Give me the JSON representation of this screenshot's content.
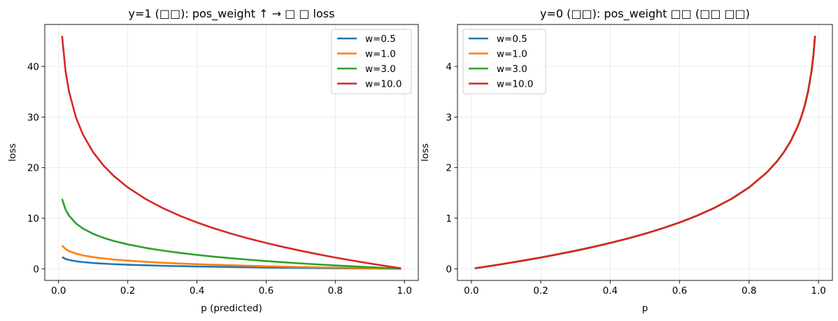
{
  "chart_data": [
    {
      "type": "line",
      "title": "y=1 (□□): pos_weight ↑ → □ □ loss",
      "xlabel": "p (predicted)",
      "ylabel": "loss",
      "xlim": [
        -0.04,
        1.04
      ],
      "ylim": [
        -2.3,
        48.3
      ],
      "xticks": [
        0.0,
        0.2,
        0.4,
        0.6,
        0.8,
        1.0
      ],
      "xtick_labels": [
        "0.0",
        "0.2",
        "0.4",
        "0.6",
        "0.8",
        "1.0"
      ],
      "yticks": [
        0,
        10,
        20,
        30,
        40
      ],
      "ytick_labels": [
        "0",
        "10",
        "20",
        "30",
        "40"
      ],
      "grid": true,
      "legend": "top-right",
      "series": [
        {
          "name": "w=0.5",
          "color": "#1f77b4",
          "x": [
            0.01,
            0.02,
            0.03,
            0.05,
            0.07,
            0.1,
            0.13,
            0.16,
            0.2,
            0.25,
            0.3,
            0.35,
            0.4,
            0.45,
            0.5,
            0.55,
            0.6,
            0.65,
            0.7,
            0.75,
            0.8,
            0.85,
            0.9,
            0.95,
            0.99
          ],
          "y": [
            2.303,
            1.956,
            1.753,
            1.498,
            1.33,
            1.151,
            1.02,
            0.916,
            0.805,
            0.693,
            0.602,
            0.525,
            0.458,
            0.399,
            0.347,
            0.299,
            0.255,
            0.215,
            0.178,
            0.144,
            0.112,
            0.081,
            0.053,
            0.026,
            0.005
          ]
        },
        {
          "name": "w=1.0",
          "color": "#ff7f0e",
          "x": [
            0.01,
            0.02,
            0.03,
            0.05,
            0.07,
            0.1,
            0.13,
            0.16,
            0.2,
            0.25,
            0.3,
            0.35,
            0.4,
            0.45,
            0.5,
            0.55,
            0.6,
            0.65,
            0.7,
            0.75,
            0.8,
            0.85,
            0.9,
            0.95,
            0.99
          ],
          "y": [
            4.605,
            3.912,
            3.507,
            2.996,
            2.659,
            2.303,
            2.04,
            1.833,
            1.609,
            1.386,
            1.204,
            1.05,
            0.916,
            0.799,
            0.693,
            0.598,
            0.511,
            0.431,
            0.357,
            0.288,
            0.223,
            0.163,
            0.105,
            0.051,
            0.01
          ]
        },
        {
          "name": "w=3.0",
          "color": "#2ca02c",
          "x": [
            0.01,
            0.02,
            0.03,
            0.05,
            0.07,
            0.1,
            0.13,
            0.16,
            0.2,
            0.25,
            0.3,
            0.35,
            0.4,
            0.45,
            0.5,
            0.55,
            0.6,
            0.65,
            0.7,
            0.75,
            0.8,
            0.85,
            0.9,
            0.95,
            0.99
          ],
          "y": [
            13.816,
            11.736,
            10.52,
            8.987,
            7.978,
            6.908,
            6.121,
            5.498,
            4.828,
            4.159,
            3.612,
            3.149,
            2.749,
            2.396,
            2.079,
            1.794,
            1.532,
            1.292,
            1.07,
            0.863,
            0.669,
            0.488,
            0.316,
            0.154,
            0.03
          ]
        },
        {
          "name": "w=10.0",
          "color": "#d62728",
          "x": [
            0.01,
            0.02,
            0.03,
            0.05,
            0.07,
            0.1,
            0.13,
            0.16,
            0.2,
            0.25,
            0.3,
            0.35,
            0.4,
            0.45,
            0.5,
            0.55,
            0.6,
            0.65,
            0.7,
            0.75,
            0.8,
            0.85,
            0.9,
            0.95,
            0.99
          ],
          "y": [
            46.052,
            39.12,
            35.066,
            29.957,
            26.593,
            23.026,
            20.402,
            18.326,
            16.094,
            13.863,
            12.04,
            10.498,
            9.163,
            7.985,
            6.931,
            5.978,
            5.108,
            4.308,
            3.567,
            2.877,
            2.231,
            1.625,
            1.054,
            0.513,
            0.101
          ]
        }
      ]
    },
    {
      "type": "line",
      "title": "y=0 (□□): pos_weight □□ (□□ □□)",
      "xlabel": "p",
      "ylabel": "loss",
      "xlim": [
        -0.04,
        1.04
      ],
      "ylim": [
        -0.23,
        4.83
      ],
      "xticks": [
        0.0,
        0.2,
        0.4,
        0.6,
        0.8,
        1.0
      ],
      "xtick_labels": [
        "0.0",
        "0.2",
        "0.4",
        "0.6",
        "0.8",
        "1.0"
      ],
      "yticks": [
        0,
        1,
        2,
        3,
        4
      ],
      "ytick_labels": [
        "0",
        "1",
        "2",
        "3",
        "4"
      ],
      "grid": true,
      "legend": "top-left",
      "series": [
        {
          "name": "w=0.5",
          "color": "#1f77b4",
          "x": [
            0.01,
            0.05,
            0.1,
            0.15,
            0.2,
            0.25,
            0.3,
            0.35,
            0.4,
            0.45,
            0.5,
            0.55,
            0.6,
            0.65,
            0.7,
            0.75,
            0.8,
            0.85,
            0.88,
            0.9,
            0.92,
            0.94,
            0.95,
            0.96,
            0.97,
            0.98,
            0.985,
            0.99
          ],
          "y": [
            0.01,
            0.051,
            0.105,
            0.163,
            0.223,
            0.288,
            0.357,
            0.431,
            0.511,
            0.598,
            0.693,
            0.799,
            0.916,
            1.05,
            1.204,
            1.386,
            1.609,
            1.897,
            2.12,
            2.303,
            2.526,
            2.813,
            2.996,
            3.219,
            3.507,
            3.912,
            4.2,
            4.605
          ]
        },
        {
          "name": "w=1.0",
          "color": "#ff7f0e",
          "x": [
            0.01,
            0.05,
            0.1,
            0.15,
            0.2,
            0.25,
            0.3,
            0.35,
            0.4,
            0.45,
            0.5,
            0.55,
            0.6,
            0.65,
            0.7,
            0.75,
            0.8,
            0.85,
            0.88,
            0.9,
            0.92,
            0.94,
            0.95,
            0.96,
            0.97,
            0.98,
            0.985,
            0.99
          ],
          "y": [
            0.01,
            0.051,
            0.105,
            0.163,
            0.223,
            0.288,
            0.357,
            0.431,
            0.511,
            0.598,
            0.693,
            0.799,
            0.916,
            1.05,
            1.204,
            1.386,
            1.609,
            1.897,
            2.12,
            2.303,
            2.526,
            2.813,
            2.996,
            3.219,
            3.507,
            3.912,
            4.2,
            4.605
          ]
        },
        {
          "name": "w=3.0",
          "color": "#2ca02c",
          "x": [
            0.01,
            0.05,
            0.1,
            0.15,
            0.2,
            0.25,
            0.3,
            0.35,
            0.4,
            0.45,
            0.5,
            0.55,
            0.6,
            0.65,
            0.7,
            0.75,
            0.8,
            0.85,
            0.88,
            0.9,
            0.92,
            0.94,
            0.95,
            0.96,
            0.97,
            0.98,
            0.985,
            0.99
          ],
          "y": [
            0.01,
            0.051,
            0.105,
            0.163,
            0.223,
            0.288,
            0.357,
            0.431,
            0.511,
            0.598,
            0.693,
            0.799,
            0.916,
            1.05,
            1.204,
            1.386,
            1.609,
            1.897,
            2.12,
            2.303,
            2.526,
            2.813,
            2.996,
            3.219,
            3.507,
            3.912,
            4.2,
            4.605
          ]
        },
        {
          "name": "w=10.0",
          "color": "#d62728",
          "x": [
            0.01,
            0.05,
            0.1,
            0.15,
            0.2,
            0.25,
            0.3,
            0.35,
            0.4,
            0.45,
            0.5,
            0.55,
            0.6,
            0.65,
            0.7,
            0.75,
            0.8,
            0.85,
            0.88,
            0.9,
            0.92,
            0.94,
            0.95,
            0.96,
            0.97,
            0.98,
            0.985,
            0.99
          ],
          "y": [
            0.01,
            0.051,
            0.105,
            0.163,
            0.223,
            0.288,
            0.357,
            0.431,
            0.511,
            0.598,
            0.693,
            0.799,
            0.916,
            1.05,
            1.204,
            1.386,
            1.609,
            1.897,
            2.12,
            2.303,
            2.526,
            2.813,
            2.996,
            3.219,
            3.507,
            3.912,
            4.2,
            4.605
          ]
        }
      ]
    }
  ]
}
